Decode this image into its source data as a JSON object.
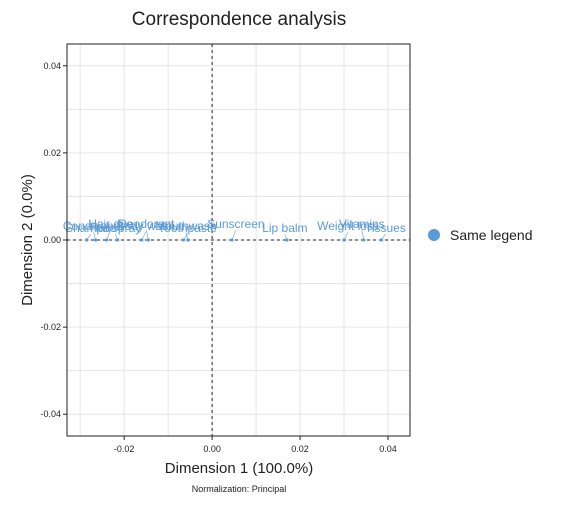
{
  "chart_data": {
    "type": "scatter",
    "title": "Correspondence analysis",
    "xlabel": "Dimension 1 (100.0%)",
    "ylabel": "Dimension 2 (0.0%)",
    "footnote": "Normalization: Principal",
    "xlim": [
      -0.033,
      0.045
    ],
    "ylim": [
      -0.045,
      0.045
    ],
    "xticks": [
      -0.02,
      0.0,
      0.02,
      0.04
    ],
    "xtick_labels": [
      "-0.02",
      "0.00",
      "0.02",
      "0.04"
    ],
    "yticks": [
      -0.04,
      -0.02,
      0.0,
      0.02,
      0.04
    ],
    "ytick_labels": [
      "-0.04",
      "-0.02",
      "0.00",
      "0.02",
      "0.04"
    ],
    "grid": true,
    "reference_lines": {
      "x": 0,
      "y": 0,
      "style": "dashed"
    },
    "legend": {
      "position": "right",
      "entries": [
        "Same legend"
      ]
    },
    "color": "#5b9bd5",
    "series": [
      {
        "name": "Same legend",
        "points": [
          {
            "x": -0.0285,
            "y": 0.0,
            "label": "Shampoo"
          },
          {
            "x": -0.0265,
            "y": 0.0,
            "label": "Conditioner"
          },
          {
            "x": -0.024,
            "y": 0.0,
            "label": "Hair dye"
          },
          {
            "x": -0.0215,
            "y": 0.0,
            "label": "Hairspray"
          },
          {
            "x": -0.016,
            "y": 0.0,
            "label": "Body wash"
          },
          {
            "x": -0.0145,
            "y": 0.0,
            "label": "Deodorant"
          },
          {
            "x": -0.0065,
            "y": 0.0,
            "label": "Toothpaste"
          },
          {
            "x": -0.0055,
            "y": 0.0,
            "label": "Mouthwash"
          },
          {
            "x": 0.0045,
            "y": 0.0,
            "label": "Sunscreen"
          },
          {
            "x": 0.017,
            "y": 0.0,
            "label": "Lip balm"
          },
          {
            "x": 0.03,
            "y": 0.0,
            "label": "Weight loss"
          },
          {
            "x": 0.0345,
            "y": 0.0,
            "label": "Vitamins"
          },
          {
            "x": 0.0385,
            "y": 0.0,
            "label": "Tissues"
          }
        ]
      }
    ]
  }
}
